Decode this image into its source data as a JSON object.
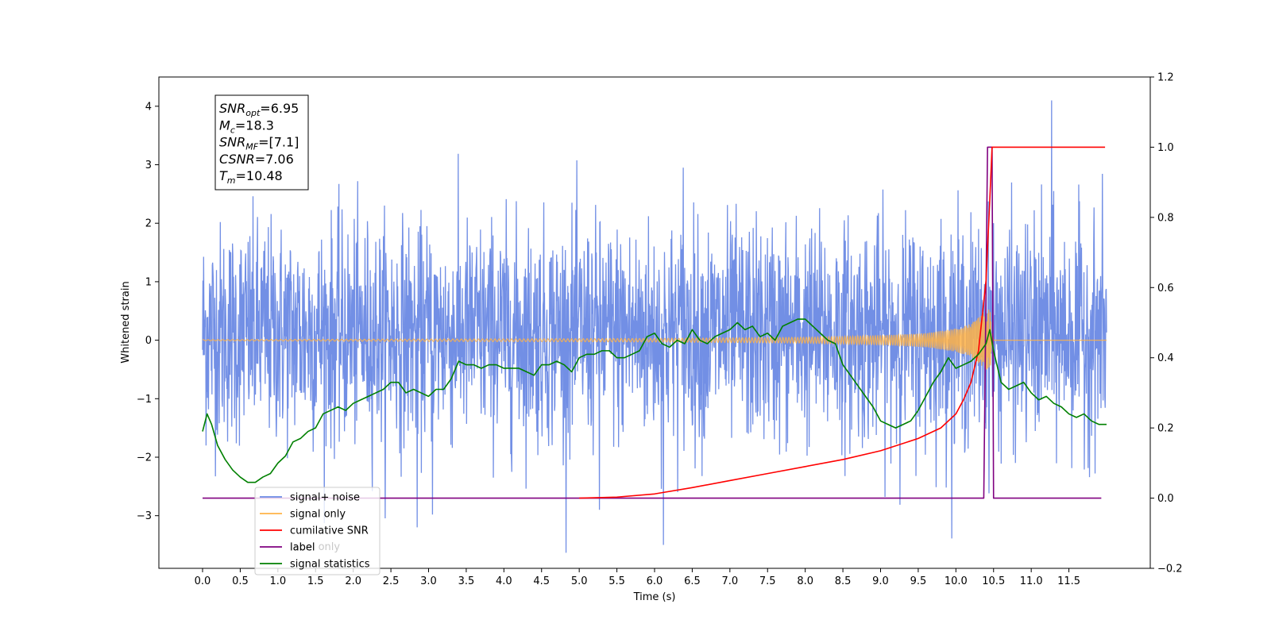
{
  "chart_data": {
    "type": "line",
    "xlabel": "Time (s)",
    "ylabel": "Whitened strain",
    "xlim": [
      -0.58,
      12.58
    ],
    "ylim": [
      -3.9,
      4.5
    ],
    "y2lim": [
      -0.2,
      1.2
    ],
    "x_ticks": [
      0.0,
      0.5,
      1.0,
      1.5,
      2.0,
      2.5,
      3.0,
      3.5,
      4.0,
      4.5,
      5.0,
      5.5,
      6.0,
      6.5,
      7.0,
      7.5,
      8.0,
      8.5,
      9.0,
      9.5,
      10.0,
      10.5,
      11.0,
      11.5
    ],
    "x_tick_labels": [
      "0.0",
      "0.5",
      "1.0",
      "1.5",
      "2.0",
      "2.5",
      "3.0",
      "3.5",
      "4.0",
      "4.5",
      "5.0",
      "5.5",
      "6.0",
      "6.5",
      "7.0",
      "7.5",
      "8.0",
      "8.5",
      "9.0",
      "9.5",
      "10.0",
      "10.5",
      "11.0",
      "11.5"
    ],
    "y_ticks": [
      -3,
      -2,
      -1,
      0,
      1,
      2,
      3,
      4
    ],
    "y_tick_labels": [
      "−3",
      "−2",
      "−1",
      "0",
      "1",
      "2",
      "3",
      "4"
    ],
    "y2_ticks": [
      -0.2,
      0.0,
      0.2,
      0.4,
      0.6,
      0.8,
      1.0,
      1.2
    ],
    "y2_tick_labels": [
      "−0.2",
      "0.0",
      "0.2",
      "0.4",
      "0.6",
      "0.8",
      "1.0",
      "1.2"
    ],
    "stats_box": {
      "lines": [
        {
          "main": "SNR",
          "sub": "opt",
          "rest": "=6.95"
        },
        {
          "main": "M",
          "sub": "c",
          "rest": "=18.3"
        },
        {
          "main": "SNR",
          "sub": "MF",
          "rest": "=[7.1]"
        },
        {
          "main": "CSNR",
          "sub": "",
          "rest": "=7.06"
        },
        {
          "main": "T",
          "sub": "m",
          "rest": "=10.48"
        }
      ]
    },
    "legend": {
      "placement": "lower-left",
      "entries": [
        {
          "label": "signal+ noise",
          "color": "#6a89e4"
        },
        {
          "label": "signal only",
          "color": "#ffb347"
        },
        {
          "label": "cumilative SNR",
          "color": "#ff0000"
        },
        {
          "label": "label",
          "color": "#800080"
        },
        {
          "label": "signal statistics",
          "color": "#008000"
        }
      ],
      "overlapped_text": "label only"
    },
    "series": [
      {
        "name": "signal+ noise",
        "axis": "left",
        "color": "#6a89e4",
        "x_range": [
          0.0,
          12.0
        ],
        "baseline": 0.0,
        "typical_envelope": [
          -1.9,
          2.4
        ],
        "peaks": [
          {
            "x": 11.27,
            "y": 4.1
          },
          {
            "x": 6.12,
            "y": -3.5
          },
          {
            "x": 2.85,
            "y": -3.2
          },
          {
            "x": 3.05,
            "y": -2.98
          },
          {
            "x": 5.27,
            "y": -2.9
          },
          {
            "x": 6.38,
            "y": 2.95
          }
        ]
      },
      {
        "name": "signal only",
        "axis": "left",
        "color": "#ffb347",
        "x_range": [
          0.0,
          12.0
        ],
        "baseline": 0.0,
        "amplitude": [
          {
            "x": 0.0,
            "y": 0.01
          },
          {
            "x": 6.0,
            "y": 0.03
          },
          {
            "x": 8.0,
            "y": 0.05
          },
          {
            "x": 9.0,
            "y": 0.08
          },
          {
            "x": 9.6,
            "y": 0.12
          },
          {
            "x": 10.0,
            "y": 0.2
          },
          {
            "x": 10.2,
            "y": 0.28
          },
          {
            "x": 10.35,
            "y": 0.45
          },
          {
            "x": 10.45,
            "y": 0.55
          },
          {
            "x": 10.5,
            "y": 0.0
          },
          {
            "x": 12.0,
            "y": 0.0
          }
        ]
      },
      {
        "name": "cumilative SNR",
        "axis": "right",
        "color": "#ff0000",
        "points": [
          [
            5.0,
            0.0
          ],
          [
            5.5,
            0.003
          ],
          [
            6.0,
            0.012
          ],
          [
            6.5,
            0.03
          ],
          [
            7.0,
            0.05
          ],
          [
            7.5,
            0.07
          ],
          [
            8.0,
            0.09
          ],
          [
            8.5,
            0.11
          ],
          [
            9.0,
            0.135
          ],
          [
            9.5,
            0.17
          ],
          [
            9.8,
            0.2
          ],
          [
            10.0,
            0.24
          ],
          [
            10.1,
            0.28
          ],
          [
            10.2,
            0.33
          ],
          [
            10.3,
            0.42
          ],
          [
            10.4,
            0.62
          ],
          [
            10.45,
            0.85
          ],
          [
            10.48,
            1.0
          ],
          [
            11.98,
            1.0
          ]
        ]
      },
      {
        "name": "label",
        "axis": "right",
        "color": "#800080",
        "points": [
          [
            0.0,
            0.0
          ],
          [
            10.37,
            0.0
          ],
          [
            10.42,
            1.0
          ],
          [
            10.48,
            1.0
          ],
          [
            10.5,
            0.0
          ],
          [
            11.93,
            0.0
          ]
        ]
      },
      {
        "name": "signal statistics",
        "axis": "right",
        "color": "#008000",
        "points": [
          [
            0.0,
            0.19
          ],
          [
            0.06,
            0.24
          ],
          [
            0.12,
            0.21
          ],
          [
            0.2,
            0.15
          ],
          [
            0.3,
            0.11
          ],
          [
            0.4,
            0.08
          ],
          [
            0.5,
            0.06
          ],
          [
            0.6,
            0.045
          ],
          [
            0.7,
            0.045
          ],
          [
            0.8,
            0.06
          ],
          [
            0.9,
            0.07
          ],
          [
            1.0,
            0.1
          ],
          [
            1.1,
            0.12
          ],
          [
            1.2,
            0.16
          ],
          [
            1.3,
            0.17
          ],
          [
            1.4,
            0.19
          ],
          [
            1.5,
            0.2
          ],
          [
            1.6,
            0.24
          ],
          [
            1.7,
            0.25
          ],
          [
            1.8,
            0.26
          ],
          [
            1.9,
            0.25
          ],
          [
            2.0,
            0.27
          ],
          [
            2.1,
            0.28
          ],
          [
            2.2,
            0.29
          ],
          [
            2.3,
            0.3
          ],
          [
            2.4,
            0.31
          ],
          [
            2.5,
            0.33
          ],
          [
            2.6,
            0.33
          ],
          [
            2.7,
            0.3
          ],
          [
            2.8,
            0.31
          ],
          [
            2.9,
            0.3
          ],
          [
            3.0,
            0.29
          ],
          [
            3.1,
            0.31
          ],
          [
            3.2,
            0.31
          ],
          [
            3.3,
            0.34
          ],
          [
            3.4,
            0.39
          ],
          [
            3.5,
            0.38
          ],
          [
            3.6,
            0.38
          ],
          [
            3.7,
            0.37
          ],
          [
            3.8,
            0.38
          ],
          [
            3.9,
            0.38
          ],
          [
            4.0,
            0.37
          ],
          [
            4.1,
            0.37
          ],
          [
            4.2,
            0.37
          ],
          [
            4.3,
            0.36
          ],
          [
            4.4,
            0.35
          ],
          [
            4.5,
            0.38
          ],
          [
            4.6,
            0.38
          ],
          [
            4.7,
            0.39
          ],
          [
            4.8,
            0.38
          ],
          [
            4.9,
            0.36
          ],
          [
            5.0,
            0.4
          ],
          [
            5.1,
            0.41
          ],
          [
            5.2,
            0.41
          ],
          [
            5.3,
            0.42
          ],
          [
            5.4,
            0.42
          ],
          [
            5.5,
            0.4
          ],
          [
            5.6,
            0.4
          ],
          [
            5.7,
            0.41
          ],
          [
            5.8,
            0.42
          ],
          [
            5.9,
            0.46
          ],
          [
            6.0,
            0.47
          ],
          [
            6.1,
            0.44
          ],
          [
            6.2,
            0.43
          ],
          [
            6.3,
            0.45
          ],
          [
            6.4,
            0.44
          ],
          [
            6.5,
            0.48
          ],
          [
            6.6,
            0.45
          ],
          [
            6.7,
            0.44
          ],
          [
            6.8,
            0.46
          ],
          [
            6.9,
            0.47
          ],
          [
            7.0,
            0.48
          ],
          [
            7.1,
            0.5
          ],
          [
            7.2,
            0.48
          ],
          [
            7.3,
            0.49
          ],
          [
            7.4,
            0.46
          ],
          [
            7.5,
            0.47
          ],
          [
            7.6,
            0.45
          ],
          [
            7.7,
            0.49
          ],
          [
            7.8,
            0.5
          ],
          [
            7.9,
            0.51
          ],
          [
            8.0,
            0.51
          ],
          [
            8.1,
            0.49
          ],
          [
            8.2,
            0.47
          ],
          [
            8.3,
            0.45
          ],
          [
            8.4,
            0.44
          ],
          [
            8.5,
            0.38
          ],
          [
            8.6,
            0.35
          ],
          [
            8.7,
            0.32
          ],
          [
            8.8,
            0.29
          ],
          [
            8.9,
            0.26
          ],
          [
            9.0,
            0.22
          ],
          [
            9.1,
            0.21
          ],
          [
            9.2,
            0.2
          ],
          [
            9.3,
            0.21
          ],
          [
            9.4,
            0.22
          ],
          [
            9.5,
            0.25
          ],
          [
            9.6,
            0.29
          ],
          [
            9.7,
            0.33
          ],
          [
            9.8,
            0.36
          ],
          [
            9.9,
            0.4
          ],
          [
            10.0,
            0.37
          ],
          [
            10.1,
            0.38
          ],
          [
            10.2,
            0.39
          ],
          [
            10.3,
            0.41
          ],
          [
            10.4,
            0.44
          ],
          [
            10.45,
            0.48
          ],
          [
            10.5,
            0.42
          ],
          [
            10.6,
            0.33
          ],
          [
            10.7,
            0.31
          ],
          [
            10.8,
            0.32
          ],
          [
            10.9,
            0.33
          ],
          [
            11.0,
            0.3
          ],
          [
            11.1,
            0.28
          ],
          [
            11.2,
            0.29
          ],
          [
            11.3,
            0.27
          ],
          [
            11.4,
            0.26
          ],
          [
            11.5,
            0.24
          ],
          [
            11.6,
            0.23
          ],
          [
            11.7,
            0.24
          ],
          [
            11.8,
            0.22
          ],
          [
            11.9,
            0.21
          ],
          [
            12.0,
            0.21
          ]
        ]
      }
    ]
  }
}
